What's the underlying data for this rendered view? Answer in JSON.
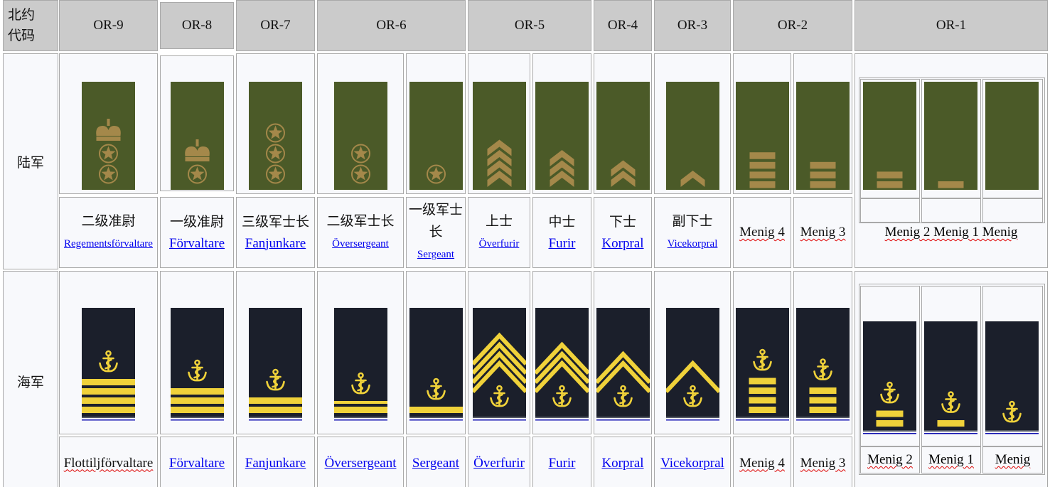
{
  "header": {
    "corner": [
      "北约",
      "代码"
    ],
    "codes": [
      "OR-9",
      "OR-8",
      "OR-7",
      "OR-6",
      "OR-5",
      "OR-4",
      "OR-3",
      "OR-2",
      "OR-1"
    ]
  },
  "rows": {
    "army": "陆军",
    "navy": "海军"
  },
  "colors": {
    "header_bg": "#cbcbcb",
    "cell_bg": "#f8f9fc",
    "army_board": "#4b5a28",
    "army_insignia": "#a4884a",
    "navy_board": "#1b1f2b",
    "navy_insignia": "#f0d23a",
    "link": "#0000ee"
  },
  "army": [
    {
      "zh": "二级准尉",
      "sv": "Regementsförvaltare",
      "link": true,
      "insignia": {
        "crown": 1,
        "stars": 2
      }
    },
    {
      "zh": "一级准尉",
      "sv": "Förvaltare",
      "link": true,
      "insignia": {
        "crown": 1,
        "stars": 1
      }
    },
    {
      "zh": "三级军士长",
      "sv": "Fanjunkare",
      "link": true,
      "insignia": {
        "stars": 3
      }
    },
    {
      "zh": "二级军士长",
      "sv": "Översergeant",
      "link": true,
      "insignia": {
        "stars": 2
      }
    },
    {
      "zh": "一级军士长",
      "sv": "Sergeant",
      "link": true,
      "insignia": {
        "stars": 1
      }
    },
    {
      "zh": "上士",
      "sv": "Överfurir",
      "link": true,
      "insignia": {
        "chevrons": 4
      }
    },
    {
      "zh": "中士",
      "sv": "Furir",
      "link": true,
      "insignia": {
        "chevrons": 3
      }
    },
    {
      "zh": "下士",
      "sv": "Korpral",
      "link": true,
      "insignia": {
        "chevrons": 2
      }
    },
    {
      "zh": "副下士",
      "sv": "Vicekorpral",
      "link": true,
      "insignia": {
        "chevrons": 1
      }
    },
    {
      "zh": "",
      "sv": "Menig 4",
      "link": false,
      "insignia": {
        "bars": 4
      }
    },
    {
      "zh": "",
      "sv": "Menig 3",
      "link": false,
      "insignia": {
        "bars": 3
      }
    }
  ],
  "army_or1": {
    "label": "Menig 2 Menig 1 Menig",
    "insignia": [
      {
        "bars": 2
      },
      {
        "bars": 1
      },
      {
        "bars": 0
      }
    ]
  },
  "navy": [
    {
      "sv": "Flottiljförvaltare",
      "link": false,
      "insignia": {
        "anchor": 1,
        "stripes": [
          "wide",
          "wide",
          "wide",
          "wide"
        ]
      }
    },
    {
      "sv": "Förvaltare",
      "link": true,
      "insignia": {
        "anchor": 1,
        "stripes": [
          "wide",
          "wide",
          "wide"
        ]
      }
    },
    {
      "sv": "Fanjunkare",
      "link": true,
      "insignia": {
        "anchor": 1,
        "stripes": [
          "wide",
          "wide"
        ]
      }
    },
    {
      "sv": "Översergeant",
      "link": true,
      "insignia": {
        "anchor": 1,
        "stripes": [
          "wide",
          "thin"
        ]
      }
    },
    {
      "sv": "Sergeant",
      "link": true,
      "insignia": {
        "anchor": 1,
        "stripes": [
          "wide"
        ]
      }
    },
    {
      "sv": "Överfurir",
      "link": true,
      "insignia": {
        "anchor": 1,
        "chevrons": 4
      }
    },
    {
      "sv": "Furir",
      "link": true,
      "insignia": {
        "anchor": 1,
        "chevrons": 3
      }
    },
    {
      "sv": "Korpral",
      "link": true,
      "insignia": {
        "anchor": 1,
        "chevrons": 2
      }
    },
    {
      "sv": "Vicekorpral",
      "link": true,
      "insignia": {
        "anchor": 1,
        "chevrons": 1
      }
    },
    {
      "sv": "Menig 4",
      "link": false,
      "insignia": {
        "anchor": 1,
        "bars": 4
      }
    },
    {
      "sv": "Menig 3",
      "link": false,
      "insignia": {
        "anchor": 1,
        "bars": 3
      }
    }
  ],
  "navy_or1": {
    "labels": [
      "Menig 2",
      "Menig 1",
      "Menig"
    ],
    "insignia": [
      {
        "anchor": 1,
        "bars": 2
      },
      {
        "anchor": 1,
        "bars": 1
      },
      {
        "anchor": 1,
        "bars": 0
      }
    ]
  }
}
